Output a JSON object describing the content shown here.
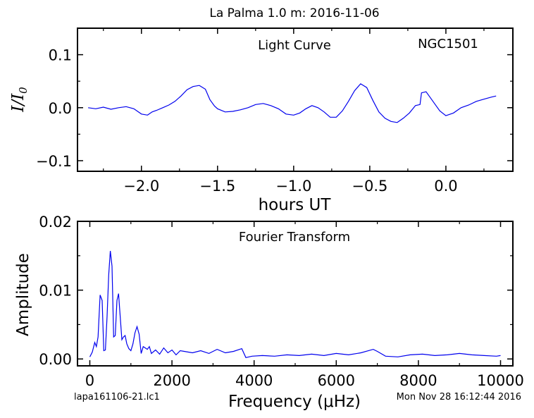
{
  "page_title": "La Palma 1.0 m:  2016-11-06",
  "footer": {
    "left": "lapa161106-21.lc1",
    "right": "Mon Nov 28 16:12:44 2016"
  },
  "chart_data": [
    {
      "type": "line",
      "title": "Light Curve",
      "annotation": "NGC1501",
      "xlabel": "hours UT",
      "ylabel": "I/I0",
      "xlim": [
        -2.42,
        0.44
      ],
      "ylim": [
        -0.12,
        0.15
      ],
      "xticks": [
        -2.0,
        -1.5,
        -1.0,
        -0.5,
        0.0
      ],
      "xtick_labels": [
        "−2.0",
        "−1.5",
        "−1.0",
        "−0.5",
        "0.0"
      ],
      "yticks": [
        -0.1,
        0.0,
        0.1
      ],
      "ytick_labels": [
        "−0.1",
        "0.0",
        "0.1"
      ],
      "grid": false,
      "color": "#0000ee",
      "series": [
        {
          "x": [
            -2.35,
            -2.3,
            -2.25,
            -2.2,
            -2.15,
            -2.1,
            -2.05,
            -2.0,
            -1.96,
            -1.93,
            -1.9,
            -1.86,
            -1.82,
            -1.78,
            -1.74,
            -1.7,
            -1.66,
            -1.62,
            -1.58,
            -1.55,
            -1.52,
            -1.5,
            -1.45,
            -1.4,
            -1.35,
            -1.3,
            -1.25,
            -1.2,
            -1.15,
            -1.1,
            -1.05,
            -1.0,
            -0.96,
            -0.92,
            -0.88,
            -0.84,
            -0.8,
            -0.76,
            -0.72,
            -0.68,
            -0.64,
            -0.6,
            -0.56,
            -0.52,
            -0.48,
            -0.44,
            -0.4,
            -0.36,
            -0.32,
            -0.28,
            -0.24,
            -0.2,
            -0.17,
            -0.16,
            -0.13,
            -0.1,
            -0.07,
            -0.04,
            0.0,
            0.05,
            0.1,
            0.15,
            0.2,
            0.25,
            0.3,
            0.33
          ],
          "y": [
            0.0,
            -0.002,
            0.001,
            -0.003,
            0.0,
            0.002,
            -0.002,
            -0.012,
            -0.014,
            -0.008,
            -0.005,
            0.0,
            0.005,
            0.012,
            0.022,
            0.034,
            0.04,
            0.042,
            0.035,
            0.015,
            0.003,
            -0.002,
            -0.008,
            -0.007,
            -0.004,
            0.0,
            0.006,
            0.008,
            0.004,
            -0.002,
            -0.012,
            -0.014,
            -0.01,
            -0.002,
            0.004,
            0.0,
            -0.008,
            -0.018,
            -0.018,
            -0.006,
            0.012,
            0.032,
            0.045,
            0.038,
            0.014,
            -0.008,
            -0.02,
            -0.026,
            -0.028,
            -0.02,
            -0.01,
            0.004,
            0.006,
            0.028,
            0.03,
            0.018,
            0.006,
            -0.006,
            -0.015,
            -0.01,
            0.0,
            0.005,
            0.012,
            0.016,
            0.02,
            0.022
          ]
        }
      ]
    },
    {
      "type": "line",
      "title": "Fourier Transform",
      "xlabel": "Frequency (μHz)",
      "ylabel": "Amplitude",
      "xlim": [
        -300,
        10300
      ],
      "ylim": [
        -0.001,
        0.02
      ],
      "xticks": [
        0,
        2000,
        4000,
        6000,
        8000,
        10000
      ],
      "xtick_labels": [
        "0",
        "2000",
        "4000",
        "6000",
        "8000",
        "10000"
      ],
      "yticks": [
        0.0,
        0.01,
        0.02
      ],
      "ytick_labels": [
        "0.00",
        "0.01",
        "0.02"
      ],
      "grid": false,
      "color": "#0000ee",
      "series": [
        {
          "x": [
            0,
            60,
            120,
            160,
            200,
            250,
            300,
            340,
            380,
            420,
            460,
            500,
            540,
            580,
            620,
            660,
            700,
            740,
            780,
            820,
            860,
            900,
            950,
            1000,
            1050,
            1100,
            1150,
            1200,
            1250,
            1300,
            1350,
            1400,
            1450,
            1500,
            1600,
            1700,
            1800,
            1900,
            2000,
            2100,
            2200,
            2300,
            2500,
            2700,
            2900,
            3100,
            3300,
            3500,
            3700,
            3800,
            3950,
            4200,
            4500,
            4800,
            5100,
            5400,
            5700,
            6000,
            6300,
            6600,
            6900,
            7000,
            7200,
            7500,
            7800,
            8100,
            8400,
            8700,
            9000,
            9300,
            9600,
            9900,
            10000
          ],
          "y": [
            0.0003,
            0.001,
            0.0024,
            0.0018,
            0.0032,
            0.0093,
            0.0085,
            0.0012,
            0.0013,
            0.0062,
            0.0122,
            0.0157,
            0.0135,
            0.0032,
            0.0034,
            0.0085,
            0.0095,
            0.0062,
            0.0028,
            0.0032,
            0.0034,
            0.0022,
            0.0015,
            0.0012,
            0.0022,
            0.0038,
            0.0047,
            0.0036,
            0.0008,
            0.0018,
            0.0016,
            0.0014,
            0.0018,
            0.0008,
            0.0013,
            0.0007,
            0.0016,
            0.0009,
            0.0013,
            0.0006,
            0.0012,
            0.0011,
            0.0009,
            0.0012,
            0.0008,
            0.0014,
            0.0009,
            0.0011,
            0.0015,
            0.0002,
            0.0004,
            0.0005,
            0.0004,
            0.0006,
            0.0005,
            0.0007,
            0.0005,
            0.0008,
            0.0006,
            0.0009,
            0.0014,
            0.0011,
            0.0004,
            0.0003,
            0.0006,
            0.0007,
            0.0005,
            0.0006,
            0.0008,
            0.0006,
            0.0005,
            0.0004,
            0.0005
          ]
        }
      ]
    }
  ]
}
